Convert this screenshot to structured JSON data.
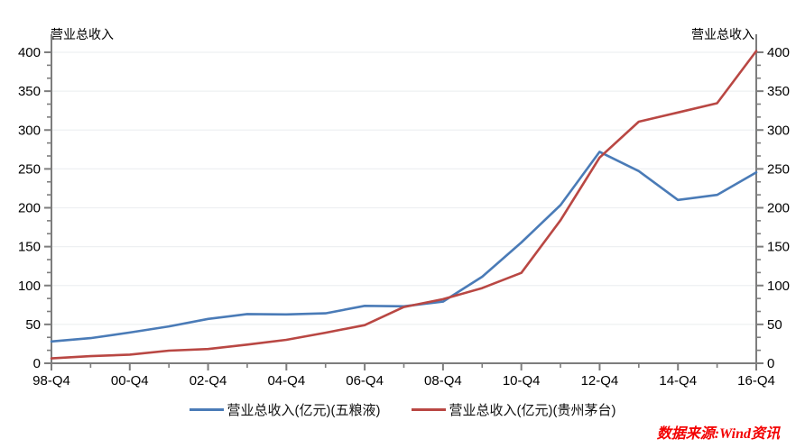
{
  "axis_title_left": "营业总收入",
  "axis_title_right": "营业总收入",
  "source_note": "数据来源:Wind资讯",
  "colors": {
    "series_blue": "#4a7bb7",
    "series_red": "#b94743",
    "gridline": "#eef0f2",
    "axis": "#7d7d7d",
    "tick_label": "#000000",
    "source_note": "#f30000",
    "background": "#ffffff"
  },
  "chart_data": {
    "type": "line",
    "title": "",
    "xlabel": "",
    "ylabel_left": "营业总收入",
    "ylabel_right": "营业总收入",
    "categories": [
      "98-Q4",
      "99-Q4",
      "00-Q4",
      "01-Q4",
      "02-Q4",
      "03-Q4",
      "04-Q4",
      "05-Q4",
      "06-Q4",
      "07-Q4",
      "08-Q4",
      "09-Q4",
      "10-Q4",
      "11-Q4",
      "12-Q4",
      "13-Q4",
      "14-Q4",
      "15-Q4",
      "16-Q4"
    ],
    "x_major_tick_labels": [
      "98-Q4",
      "00-Q4",
      "02-Q4",
      "04-Q4",
      "06-Q4",
      "08-Q4",
      "10-Q4",
      "12-Q4",
      "14-Q4",
      "16-Q4"
    ],
    "series": [
      {
        "name": "营业总收入(亿元)(五粮液)",
        "color": "#4a7bb7",
        "values": [
          28.1,
          32.4,
          39.5,
          47.4,
          57.0,
          63.3,
          62.8,
          64.2,
          73.9,
          73.3,
          79.3,
          111.3,
          155.4,
          203.5,
          272.0,
          247.2,
          210.1,
          216.6,
          245.4
        ]
      },
      {
        "name": "营业总收入(亿元)(贵州茅台)",
        "color": "#b94743",
        "values": [
          6.3,
          9.2,
          11.1,
          16.2,
          18.3,
          24.0,
          30.1,
          39.3,
          49.0,
          72.4,
          82.4,
          96.7,
          116.3,
          184.0,
          264.6,
          310.7,
          322.5,
          334.5,
          401.6
        ]
      }
    ],
    "ylim": [
      0,
      400
    ],
    "y_tick_step": 50,
    "y_minor_ticks_per_major": 2,
    "y_tick_labels": [
      "0",
      "50",
      "100",
      "150",
      "200",
      "250",
      "300",
      "350",
      "400"
    ],
    "dual_y_axis": true,
    "grid": true,
    "legend_position": "bottom"
  }
}
